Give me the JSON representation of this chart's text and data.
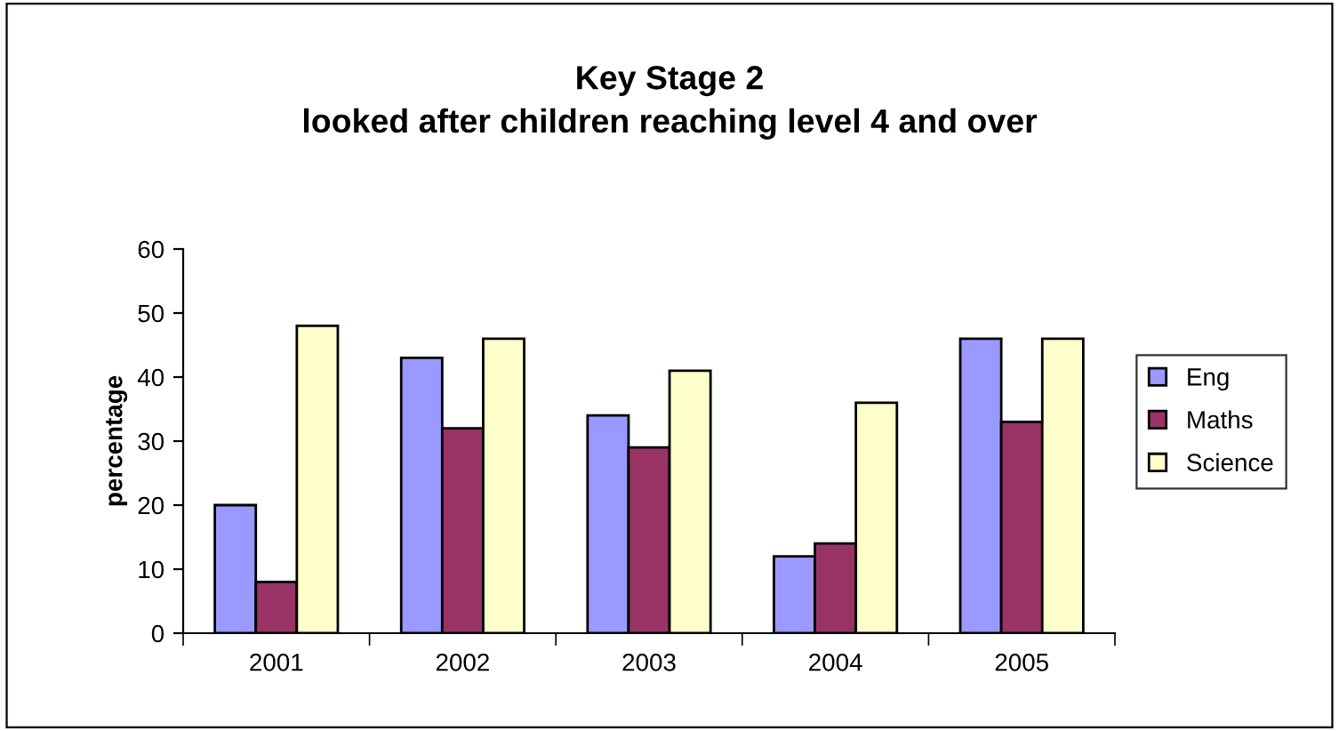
{
  "chart_data": {
    "type": "bar",
    "title": "Key Stage 2\nlooked after children reaching level 4 and over",
    "ylabel": "percentage",
    "categories": [
      "2001",
      "2002",
      "2003",
      "2004",
      "2005"
    ],
    "series": [
      {
        "name": "Eng",
        "color": "#9999ff",
        "values": [
          20,
          43,
          34,
          12,
          46
        ]
      },
      {
        "name": "Maths",
        "color": "#993366",
        "values": [
          8,
          32,
          29,
          14,
          33
        ]
      },
      {
        "name": "Science",
        "color": "#ffffcc",
        "values": [
          48,
          46,
          41,
          36,
          46
        ]
      }
    ],
    "ylim": [
      0,
      60
    ],
    "yticks": [
      0,
      10,
      20,
      30,
      40,
      50,
      60
    ],
    "grid": false,
    "legend": "right"
  }
}
